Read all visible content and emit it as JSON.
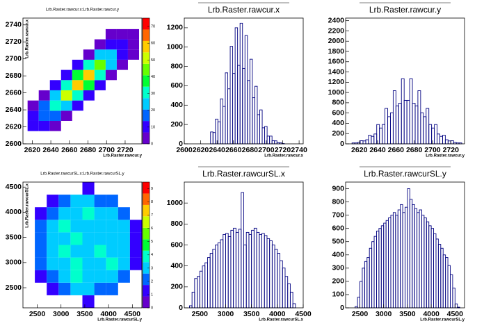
{
  "chart_data": [
    {
      "type": "heatmap",
      "title": "Lrb.Raster.rawcur.x:Lrb.Raster.rawcur.y",
      "xlabel": "Lrb.Raster.rawcur.y",
      "ylabel": "Lrb.Raster.rawcur.x",
      "xbins": [
        2615,
        2627,
        2639,
        2651,
        2663,
        2675,
        2687,
        2699,
        2711,
        2723,
        2735
      ],
      "ybins": [
        2615,
        2627,
        2639,
        2651,
        2663,
        2675,
        2687,
        2699,
        2711,
        2723,
        2735
      ],
      "values": [
        [
          7,
          7,
          2,
          0,
          0,
          0,
          0,
          0,
          0,
          0
        ],
        [
          7,
          17,
          15,
          4,
          0,
          0,
          0,
          0,
          0,
          0
        ],
        [
          2,
          15,
          32,
          25,
          7,
          0,
          0,
          0,
          0,
          0
        ],
        [
          0,
          4,
          25,
          49,
          34,
          8,
          0,
          0,
          0,
          0
        ],
        [
          0,
          0,
          7,
          34,
          59,
          37,
          8,
          0,
          0,
          0
        ],
        [
          0,
          0,
          0,
          8,
          37,
          57,
          31,
          6,
          0,
          0
        ],
        [
          0,
          0,
          0,
          0,
          8,
          31,
          44,
          21,
          4,
          0
        ],
        [
          0,
          0,
          0,
          0,
          0,
          6,
          21,
          26,
          12,
          2
        ],
        [
          0,
          0,
          0,
          0,
          0,
          0,
          4,
          12,
          13,
          5
        ],
        [
          0,
          0,
          0,
          0,
          0,
          0,
          0,
          2,
          5,
          5
        ]
      ],
      "xlim": [
        2610,
        2738
      ],
      "ylim": [
        2600,
        2748
      ],
      "xticks": [
        2620,
        2640,
        2660,
        2680,
        2700,
        2720
      ],
      "yticks": [
        2600,
        2620,
        2640,
        2660,
        2680,
        2700,
        2720,
        2740
      ],
      "zlim": [
        0,
        75
      ],
      "zticks": [
        0,
        10,
        20,
        30,
        40,
        50,
        60,
        70
      ],
      "palette": [
        "#6600cc",
        "#3300ff",
        "#0066ff",
        "#00ccff",
        "#00ffcc",
        "#00ff33",
        "#66ff00",
        "#ccff00",
        "#ffcc00",
        "#ff6600",
        "#ff0000"
      ]
    },
    {
      "type": "histogram",
      "title": "Lrb.Raster.rawcur.x",
      "xlabel": "Lrb.Raster.rawcur.x",
      "color": "#000080",
      "bins": [
        2632,
        2635,
        2638,
        2641,
        2644,
        2647,
        2650,
        2653,
        2656,
        2659,
        2662,
        2665,
        2668,
        2671,
        2674,
        2677,
        2680,
        2683,
        2686,
        2689,
        2692,
        2695,
        2698,
        2701,
        2704,
        2707,
        2710,
        2713,
        2716,
        2719,
        2722
      ],
      "values": [
        123,
        117,
        256,
        228,
        465,
        387,
        734,
        569,
        1008,
        728,
        1200,
        811,
        1247,
        780,
        1120,
        655,
        875,
        477,
        595,
        302,
        351,
        166,
        180,
        80,
        80,
        33,
        31,
        12,
        10,
        3
      ],
      "xlim": [
        2600,
        2745
      ],
      "ylim": [
        0,
        1300
      ],
      "xticks": [
        2600,
        2620,
        2640,
        2660,
        2680,
        2700,
        2720,
        2740
      ],
      "yticks": [
        0,
        200,
        400,
        600,
        800,
        1000,
        1200
      ]
    },
    {
      "type": "histogram",
      "title": "Lrb.Raster.rawcur.y",
      "xlabel": "Lrb.Raster.rawcur.y",
      "color": "#000080",
      "bins": [
        2612,
        2615,
        2618,
        2621,
        2624,
        2627,
        2630,
        2633,
        2636,
        2639,
        2642,
        2645,
        2648,
        2651,
        2654,
        2657,
        2660,
        2663,
        2666,
        2669,
        2672,
        2675,
        2678,
        2681,
        2684,
        2687,
        2690,
        2693,
        2696,
        2699,
        2702,
        2705,
        2708,
        2711,
        2714,
        2717,
        2720,
        2723,
        2726,
        2729,
        2732
      ],
      "values": [
        18,
        18,
        27,
        61,
        57,
        80,
        168,
        146,
        192,
        376,
        308,
        377,
        690,
        529,
        605,
        1035,
        740,
        792,
        1268,
        847,
        847,
        1268,
        792,
        740,
        1035,
        605,
        529,
        690,
        377,
        308,
        376,
        192,
        146,
        168,
        80,
        57,
        61,
        27,
        18,
        18
      ],
      "xlim": [
        2605,
        2735
      ],
      "ylim": [
        0,
        2450
      ],
      "xticks": [
        2620,
        2640,
        2660,
        2680,
        2700,
        2720
      ],
      "yticks": [
        0,
        200,
        400,
        600,
        800,
        1000,
        1200,
        1400,
        1600,
        1800,
        2000,
        2200,
        2400
      ]
    },
    {
      "type": "heatmap",
      "title": "Lrb.Raster.rawcurSL.x:Lrb.Raster.rawcurSL.y",
      "xlabel": "Lrb.Raster.rawcurSL.y",
      "ylabel": "Lrb.Raster.rawcurSL.x",
      "xbins": [
        2200,
        2450,
        2700,
        2950,
        3200,
        3450,
        3700,
        3950,
        4200,
        4450,
        4700
      ],
      "ybins": [
        2100,
        2350,
        2600,
        2850,
        3100,
        3350,
        3600,
        3850,
        4100,
        4350,
        4600
      ],
      "values": [
        [
          0,
          0,
          0,
          0,
          0,
          1,
          0,
          0,
          0,
          0
        ],
        [
          0,
          0,
          1,
          2,
          3,
          3,
          2,
          2,
          0,
          0
        ],
        [
          0,
          1,
          2,
          3,
          4,
          3,
          3,
          3,
          2,
          0
        ],
        [
          0,
          2,
          3,
          3,
          4,
          3,
          3,
          4,
          3,
          1
        ],
        [
          0,
          2,
          3,
          4,
          3,
          3,
          4,
          3,
          3,
          1
        ],
        [
          0,
          2,
          3,
          3,
          4,
          3,
          3,
          3,
          3,
          1
        ],
        [
          0,
          2,
          3,
          4,
          3,
          3,
          3,
          3,
          3,
          1
        ],
        [
          0,
          1,
          2,
          3,
          3,
          4,
          3,
          3,
          2,
          0
        ],
        [
          0,
          0,
          1,
          2,
          3,
          3,
          2,
          2,
          0,
          0
        ],
        [
          0,
          0,
          0,
          0,
          0,
          1,
          0,
          0,
          0,
          0
        ]
      ],
      "xlim": [
        2200,
        4700
      ],
      "ylim": [
        2100,
        4600
      ],
      "xticks": [
        2500,
        3000,
        3500,
        4000,
        4500
      ],
      "yticks": [
        2500,
        3000,
        3500,
        4000,
        4500
      ],
      "zlim": [
        0,
        9.5
      ],
      "zticks": [
        0,
        1,
        2,
        3,
        4,
        5,
        6,
        7,
        8,
        9
      ],
      "palette": [
        "#6600cc",
        "#3300ff",
        "#0066ff",
        "#00ccff",
        "#00ffcc",
        "#00ff33",
        "#66ff00",
        "#ccff00",
        "#ffcc00",
        "#ff6600",
        "#ff0000"
      ]
    },
    {
      "type": "histogram",
      "title": "Lrb.Raster.rawcurSL.x",
      "xlabel": "Lrb.Raster.rawcurSL.x",
      "color": "#000080",
      "bins": [
        2300,
        2350,
        2400,
        2450,
        2500,
        2550,
        2600,
        2650,
        2700,
        2750,
        2800,
        2850,
        2900,
        2950,
        3000,
        3050,
        3100,
        3150,
        3200,
        3250,
        3300,
        3350,
        3400,
        3450,
        3500,
        3550,
        3600,
        3650,
        3700,
        3750,
        3800,
        3850,
        3900,
        3950,
        4000,
        4050,
        4100,
        4150,
        4200,
        4250,
        4300,
        4350
      ],
      "values": [
        20,
        150,
        280,
        300,
        350,
        400,
        430,
        480,
        520,
        560,
        600,
        620,
        650,
        700,
        710,
        680,
        740,
        760,
        720,
        750,
        1100,
        600,
        720,
        700,
        740,
        760,
        720,
        700,
        710,
        690,
        660,
        640,
        600,
        560,
        520,
        450,
        380,
        300,
        230,
        150,
        40
      ],
      "xlim": [
        2200,
        4500
      ],
      "ylim": [
        0,
        1200
      ],
      "xticks": [
        2500,
        3000,
        3500,
        4000,
        4500
      ],
      "yticks": [
        0,
        200,
        400,
        600,
        800,
        1000
      ]
    },
    {
      "type": "histogram",
      "title": "Lrb.Raster.rawcurSL.y",
      "xlabel": "Lrb.Raster.rawcurSL.y",
      "color": "#000080",
      "bins": [
        2400,
        2450,
        2500,
        2550,
        2600,
        2650,
        2700,
        2750,
        2800,
        2850,
        2900,
        2950,
        3000,
        3050,
        3100,
        3150,
        3200,
        3250,
        3300,
        3350,
        3400,
        3450,
        3500,
        3550,
        3600,
        3650,
        3700,
        3750,
        3800,
        3850,
        3900,
        3950,
        4000,
        4050,
        4100,
        4150,
        4200,
        4250,
        4300,
        4350,
        4400,
        4450,
        4500,
        4550,
        4600
      ],
      "values": [
        10,
        80,
        200,
        300,
        350,
        380,
        450,
        500,
        540,
        580,
        600,
        620,
        640,
        660,
        680,
        700,
        720,
        700,
        740,
        780,
        720,
        760,
        900,
        820,
        780,
        750,
        720,
        740,
        700,
        680,
        650,
        620,
        600,
        560,
        520,
        480,
        450,
        400,
        380,
        320,
        250,
        150,
        30,
        5
      ],
      "xlim": [
        2200,
        4700
      ],
      "ylim": [
        0,
        950
      ],
      "xticks": [
        2500,
        3000,
        3500,
        4000,
        4500
      ],
      "yticks": [
        0,
        100,
        200,
        300,
        400,
        500,
        600,
        700,
        800,
        900
      ]
    }
  ]
}
